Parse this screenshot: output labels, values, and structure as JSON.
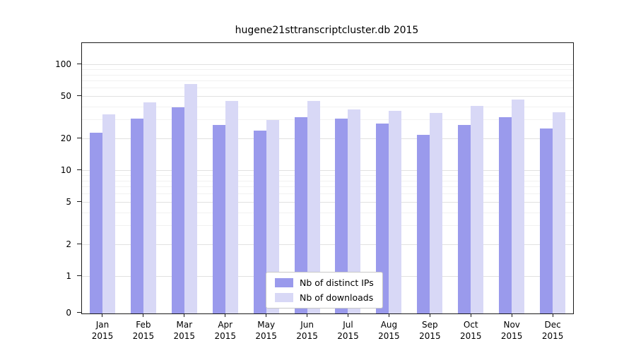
{
  "title": "hugene21sttranscriptcluster.db 2015",
  "chart_data": {
    "type": "bar",
    "title": "hugene21sttranscriptcluster.db 2015",
    "year_label": "2015",
    "categories": [
      "Jan",
      "Feb",
      "Mar",
      "Apr",
      "May",
      "Jun",
      "Jul",
      "Aug",
      "Sep",
      "Oct",
      "Nov",
      "Dec"
    ],
    "series": [
      {
        "name": "Nb of distinct IPs",
        "color": "#9a9aec",
        "values": [
          23,
          31,
          40,
          27,
          24,
          32,
          31,
          28,
          22,
          27,
          32,
          25
        ]
      },
      {
        "name": "Nb of downloads",
        "color": "#d8d8f6",
        "values": [
          34,
          44,
          66,
          46,
          30,
          46,
          38,
          37,
          35,
          41,
          47,
          36
        ]
      }
    ],
    "yticks": [
      0,
      1,
      2,
      5,
      10,
      20,
      50,
      100
    ],
    "minor_gridlines": [
      3,
      4,
      6,
      7,
      8,
      9,
      30,
      40,
      60,
      70,
      80,
      90
    ],
    "scale": "symlog",
    "ylim": [
      0,
      160
    ],
    "grid": true,
    "legend_position": "bottom-center"
  }
}
